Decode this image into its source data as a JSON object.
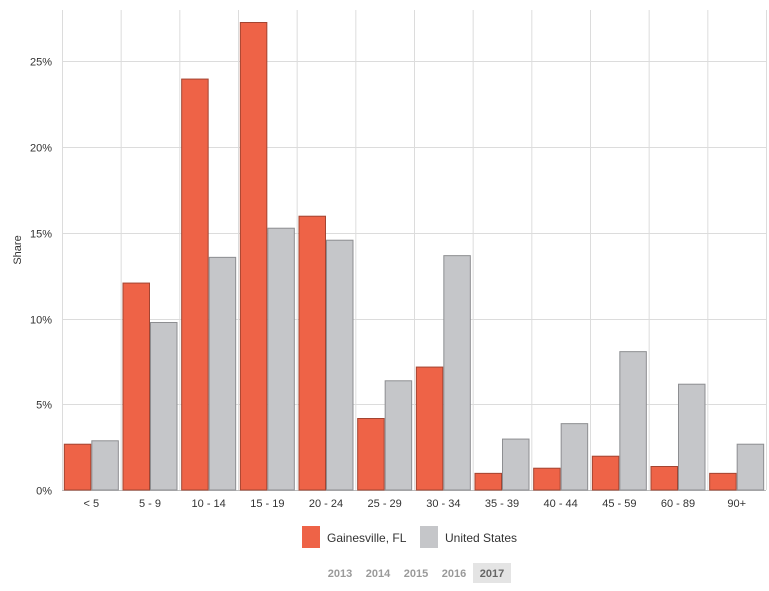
{
  "chart_data": {
    "type": "bar",
    "ylabel": "Share",
    "xlabel": "",
    "ylim": [
      0,
      28
    ],
    "yticks": [
      0,
      5,
      10,
      15,
      20,
      25
    ],
    "ytick_labels": [
      "0%",
      "5%",
      "10%",
      "15%",
      "20%",
      "25%"
    ],
    "categories": [
      "< 5",
      "5 - 9",
      "10 - 14",
      "15 - 19",
      "20 - 24",
      "25 - 29",
      "30 - 34",
      "35 - 39",
      "40 - 44",
      "45 - 59",
      "60 - 89",
      "90+"
    ],
    "series": [
      {
        "name": "Gainesville, FL",
        "color": "#ee6347",
        "values": [
          2.7,
          12.1,
          24.0,
          27.3,
          16.0,
          4.2,
          7.2,
          1.0,
          1.3,
          2.0,
          1.4,
          1.0
        ]
      },
      {
        "name": "United States",
        "color": "#c5c6c9",
        "values": [
          2.9,
          9.8,
          13.6,
          15.3,
          14.6,
          6.4,
          13.7,
          3.0,
          3.9,
          8.1,
          6.2,
          2.7
        ]
      }
    ],
    "grid": true,
    "legend_position": "bottom"
  },
  "year_selector": {
    "years": [
      "2013",
      "2014",
      "2015",
      "2016",
      "2017"
    ],
    "selected": "2017"
  }
}
